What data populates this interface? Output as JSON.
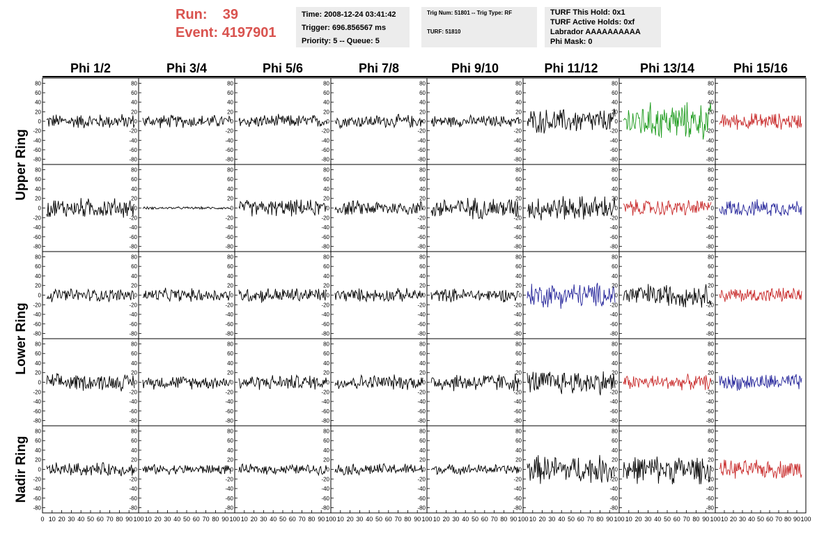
{
  "header": {
    "run_label": "Run:",
    "run_value": "39",
    "event_label": "Event:",
    "event_value": "4197901"
  },
  "info": {
    "time": "Time: 2008-12-24 03:41:42",
    "trigger": "Trigger: 696.856567 ms",
    "priority": "Priority: 5 -- Queue: 5",
    "trig_num": "Trig Num: 51801 -- Trig Type: RF",
    "turf": "TURF: 51810",
    "turf_hold": "TURF This Hold: 0x1",
    "turf_active": "TURF Active Holds: 0xf",
    "labrador": "Labrador AAAAAAAAAA",
    "phi_mask": "Phi Mask: 0"
  },
  "chart_data": {
    "type": "line",
    "columns": [
      "Phi 1/2",
      "Phi 3/4",
      "Phi 5/6",
      "Phi 7/8",
      "Phi 9/10",
      "Phi 11/12",
      "Phi 13/14",
      "Phi 15/16"
    ],
    "ring_labels": [
      "Upper Ring",
      "Lower Ring",
      "Nadir Ring"
    ],
    "y_ticks": [
      80,
      60,
      40,
      20,
      0,
      -20,
      -40,
      -60,
      -80
    ],
    "ylim": [
      -85,
      85
    ],
    "x_ticks": [
      "0",
      "10",
      "20",
      "30",
      "40",
      "50",
      "60",
      "70",
      "80",
      "90",
      "100"
    ],
    "xlim": [
      0,
      100
    ],
    "colors": {
      "black": "#000000",
      "green": "#1a9a1a",
      "red": "#c82828",
      "blue": "#24249a"
    },
    "rows": [
      {
        "color": [
          "black",
          "black",
          "black",
          "black",
          "black",
          "black",
          "green",
          "red"
        ],
        "amplitude": [
          18,
          16,
          16,
          16,
          14,
          30,
          45,
          20
        ]
      },
      {
        "color": [
          "black",
          "black",
          "black",
          "black",
          "black",
          "black",
          "red",
          "blue"
        ],
        "amplitude": [
          24,
          3,
          20,
          18,
          26,
          30,
          20,
          20
        ]
      },
      {
        "color": [
          "black",
          "black",
          "black",
          "black",
          "black",
          "blue",
          "black",
          "red"
        ],
        "amplitude": [
          16,
          16,
          18,
          16,
          16,
          30,
          28,
          18
        ]
      },
      {
        "color": [
          "black",
          "black",
          "black",
          "black",
          "black",
          "black",
          "red",
          "blue"
        ],
        "amplitude": [
          20,
          16,
          18,
          18,
          22,
          30,
          18,
          20
        ]
      },
      {
        "color": [
          "black",
          "black",
          "black",
          "black",
          "black",
          "black",
          "black",
          "red"
        ],
        "amplitude": [
          16,
          12,
          12,
          14,
          12,
          34,
          34,
          22
        ]
      }
    ]
  }
}
